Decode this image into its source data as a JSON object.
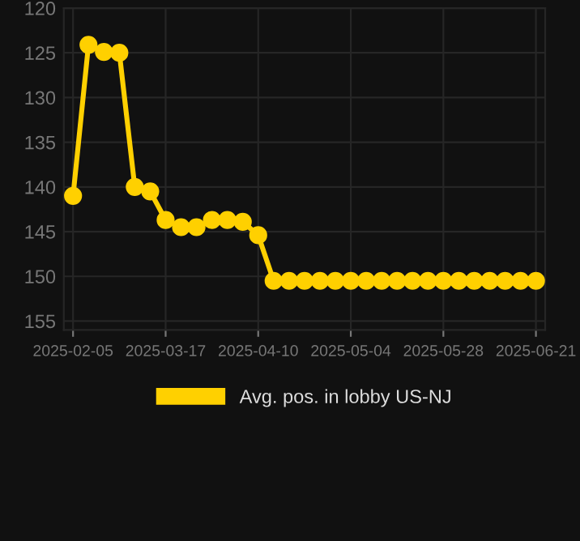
{
  "chart_data": {
    "type": "line",
    "categories": [
      "2025-02-05",
      null,
      null,
      null,
      null,
      null,
      "2025-03-17",
      null,
      null,
      null,
      null,
      null,
      "2025-04-10",
      null,
      null,
      null,
      null,
      null,
      "2025-05-04",
      null,
      null,
      null,
      null,
      null,
      "2025-05-28",
      null,
      null,
      null,
      null,
      null,
      "2025-06-21"
    ],
    "series": [
      {
        "name": "Avg. pos. in lobby US-NJ",
        "color": "#ffd000",
        "values": [
          141.0,
          124.1,
          124.9,
          125.0,
          140.0,
          140.5,
          143.7,
          144.5,
          144.5,
          143.7,
          143.7,
          143.9,
          145.4,
          150.5,
          150.5,
          150.5,
          150.5,
          150.5,
          150.5,
          150.5,
          150.5,
          150.5,
          150.5,
          150.5,
          150.5,
          150.5,
          150.5,
          150.5,
          150.5,
          150.5,
          150.5
        ]
      }
    ],
    "ylim": [
      156,
      120
    ],
    "yticks": [
      120,
      125,
      130,
      135,
      140,
      145,
      150,
      155
    ],
    "grid": true,
    "legend": "bottom",
    "marker": "circle",
    "line_style": "solid"
  }
}
